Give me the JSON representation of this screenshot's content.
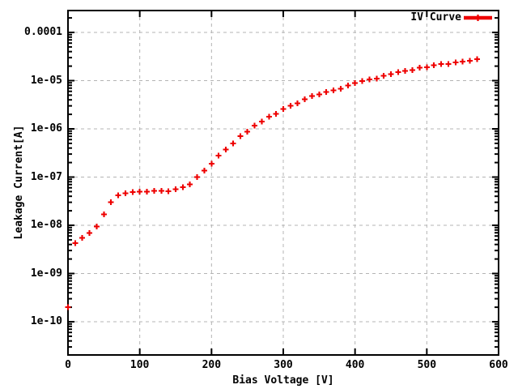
{
  "chart_data": {
    "type": "scatter",
    "title": "",
    "xlabel": "Bias Voltage [V]",
    "ylabel": "Leakage Current[A]",
    "x_scale": "linear",
    "y_scale": "log",
    "xlim": [
      0,
      600
    ],
    "ylim": [
      2e-11,
      0.00028
    ],
    "grid": true,
    "x_ticks": [
      0,
      100,
      200,
      300,
      400,
      500,
      600
    ],
    "x_tick_labels": [
      "0",
      "100",
      "200",
      "300",
      "400",
      "500",
      "600"
    ],
    "y_ticks": [
      0.0001,
      1e-05,
      1e-06,
      1e-07,
      1e-08,
      1e-09,
      1e-10
    ],
    "y_tick_labels": [
      "0.0001",
      "1e-05",
      "1e-06",
      "1e-07",
      "1e-08",
      "1e-09",
      "1e-10"
    ],
    "legend": {
      "position": "top-right",
      "entries": [
        {
          "label": "IV Curve",
          "color": "#ee0000",
          "marker": "plus"
        }
      ]
    },
    "colors": {
      "marker": "#ee0000",
      "grid": "#b4b4b4",
      "axis": "#000000",
      "background": "#ffffff"
    },
    "series": [
      {
        "name": "IV Curve",
        "marker": "plus",
        "color": "#ee0000",
        "x": [
          0,
          10,
          20,
          30,
          40,
          50,
          60,
          70,
          80,
          90,
          100,
          110,
          120,
          130,
          140,
          150,
          160,
          170,
          180,
          190,
          200,
          210,
          220,
          230,
          240,
          250,
          260,
          270,
          280,
          290,
          300,
          310,
          320,
          330,
          340,
          350,
          360,
          370,
          380,
          390,
          400,
          410,
          420,
          430,
          440,
          450,
          460,
          470,
          480,
          490,
          500,
          510,
          520,
          530,
          540,
          550,
          560,
          570
        ],
        "y": [
          2e-10,
          4.3e-09,
          5.5e-09,
          6.9e-09,
          9.4e-09,
          1.7e-08,
          3e-08,
          4.2e-08,
          4.6e-08,
          4.9e-08,
          5e-08,
          5e-08,
          5.2e-08,
          5.2e-08,
          5.1e-08,
          5.6e-08,
          6.2e-08,
          7.1e-08,
          1e-07,
          1.35e-07,
          1.9e-07,
          2.8e-07,
          3.7e-07,
          5e-07,
          7e-07,
          8.8e-07,
          1.17e-06,
          1.42e-06,
          1.77e-06,
          2.06e-06,
          2.6e-06,
          3e-06,
          3.4e-06,
          4.1e-06,
          4.8e-06,
          5.2e-06,
          5.8e-06,
          6.3e-06,
          6.8e-06,
          7.9e-06,
          8.9e-06,
          9.9e-06,
          1.07e-05,
          1.1e-05,
          1.25e-05,
          1.36e-05,
          1.5e-05,
          1.6e-05,
          1.65e-05,
          1.84e-05,
          1.9e-05,
          2.07e-05,
          2.2e-05,
          2.2e-05,
          2.4e-05,
          2.5e-05,
          2.6e-05,
          2.8e-05
        ]
      }
    ]
  }
}
